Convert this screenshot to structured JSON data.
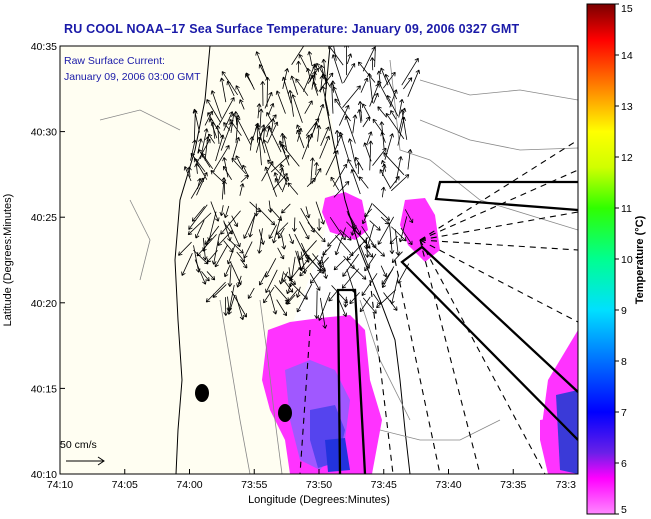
{
  "title": "RU COOL  NOAA–17  Sea Surface Temperature:  January 09, 2006 0327 GMT",
  "subtitle": {
    "line1": "Raw Surface Current:",
    "line2": "January 09, 2006 03:00 GMT"
  },
  "scale_label": "50 cm/s",
  "axes": {
    "xlabel": "Longitude (Degrees:Minutes)",
    "ylabel": "Latitude (Degrees:Minutes)",
    "x_ticks": [
      "74:10",
      "74:05",
      "74:00",
      "73:55",
      "73:50",
      "73:45",
      "73:40",
      "73:35",
      "73:3"
    ],
    "y_ticks": [
      "40:35",
      "40:30",
      "40:25",
      "40:20",
      "40:15",
      "40:10"
    ]
  },
  "colorbar": {
    "label": "Temperature (°C)",
    "ticks": [
      "15",
      "14",
      "13",
      "12",
      "11",
      "10",
      "9",
      "8",
      "7",
      "6",
      "5"
    ],
    "min": 5,
    "max": 15,
    "colors": [
      "#ff00ff",
      "#8a2be2",
      "#0000ff",
      "#0080ff",
      "#00ffff",
      "#00ff80",
      "#00ff00",
      "#c0ff00",
      "#ffff00",
      "#ff8000",
      "#ff0000",
      "#8b0000"
    ]
  },
  "colors": {
    "title": "#1a1aa8",
    "land": "#fffef2",
    "water_bg": "#ffffff",
    "sst_patch": "#ff33ff",
    "sst_cool": "#9a55ff",
    "sst_cold": "#2233dd"
  }
}
